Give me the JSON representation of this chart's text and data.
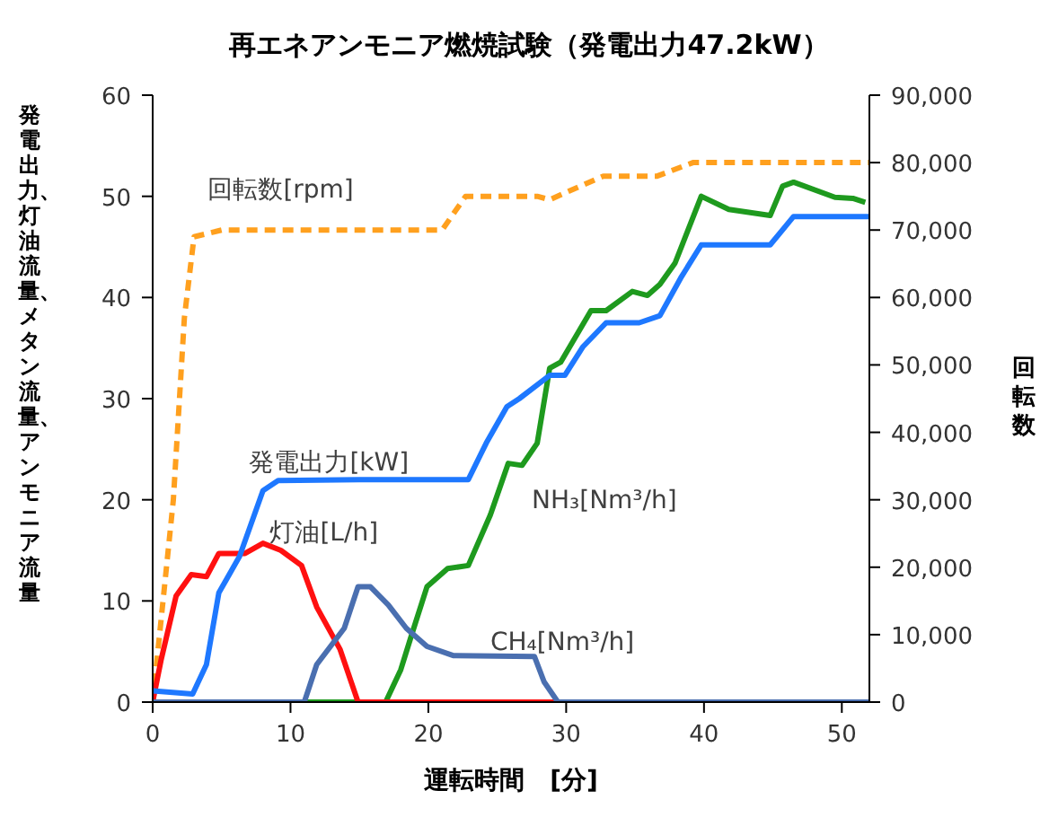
{
  "chart_data": {
    "type": "line",
    "title": "再エネアンモニア燃焼試験（発電出力47.2kW）",
    "xlabel": "運転時間　[分]",
    "ylabel": "発電出力、灯油流量、メタン流量、アンモニア流量",
    "y2label": "回転数",
    "xlim": [
      0,
      52
    ],
    "xticks": [
      0,
      10,
      20,
      30,
      40,
      50
    ],
    "ylim": [
      0,
      60
    ],
    "yticks": [
      0,
      10,
      20,
      30,
      40,
      50,
      60
    ],
    "y2lim": [
      0,
      90000
    ],
    "y2ticks": [
      {
        "value": 0,
        "label": "0"
      },
      {
        "value": 10000,
        "label": "10,000"
      },
      {
        "value": 20000,
        "label": "20,000"
      },
      {
        "value": 30000,
        "label": "30,000"
      },
      {
        "value": 40000,
        "label": "40,000"
      },
      {
        "value": 50000,
        "label": "50,000"
      },
      {
        "value": 60000,
        "label": "60,000"
      },
      {
        "value": 70000,
        "label": "70,000"
      },
      {
        "value": 80000,
        "label": "80,000"
      },
      {
        "value": 90000,
        "label": "90,000"
      }
    ],
    "grid": false,
    "legend": false,
    "marker": "none",
    "series": [
      {
        "name": "回転数[rpm]",
        "color": "#ffa01e",
        "axis": "y2",
        "line_style": "dashed",
        "x": [
          0,
          1.5,
          2.3,
          3,
          5,
          21,
          22.7,
          25.3,
          27.9,
          28.8,
          32.7,
          36.6,
          39.2,
          52
        ],
        "values": [
          0,
          30000,
          57000,
          69000,
          70000,
          70000,
          75000,
          75000,
          75000,
          74500,
          78000,
          78000,
          80000,
          80000
        ]
      },
      {
        "name": "NH₃[Nm³/h]",
        "color": "#1e9a1e",
        "line_style": "solid",
        "x": [
          0,
          16.9,
          18,
          18.8,
          19.9,
          21.4,
          22.9,
          24.5,
          25.8,
          26.8,
          27.9,
          28.8,
          29.6,
          31.8,
          32.9,
          34.8,
          35.9,
          36.8,
          37.9,
          39.8,
          41.8,
          44.8,
          45.7,
          46.5,
          49.5,
          50.8,
          51.7
        ],
        "values": [
          0,
          0,
          3.2,
          6.7,
          11.4,
          13.2,
          13.5,
          18.5,
          23.6,
          23.4,
          25.6,
          33,
          33.6,
          38.7,
          38.7,
          40.6,
          40.2,
          41.3,
          43.4,
          50,
          48.7,
          48.1,
          51,
          51.4,
          49.9,
          49.8,
          49.4
        ]
      },
      {
        "name": "灯油[L/h]",
        "color": "#ff1010",
        "line_style": "solid",
        "x": [
          0,
          0.6,
          1.7,
          2.8,
          3.9,
          4.8,
          6.7,
          8,
          9.3,
          10.8,
          11.9,
          13.6,
          14.9,
          34.4
        ],
        "values": [
          0,
          4.1,
          10.5,
          12.6,
          12.4,
          14.7,
          14.7,
          15.7,
          15,
          13.5,
          9.4,
          5.2,
          0,
          0
        ]
      },
      {
        "name": "CH₄[Nm³/h]",
        "color": "#4a6fb0",
        "line_style": "solid",
        "x": [
          0,
          11,
          11.9,
          13.9,
          14.9,
          15.8,
          17.1,
          18.4,
          19.9,
          21.8,
          27.7,
          28.4,
          29.4,
          52
        ],
        "values": [
          0,
          0,
          3.7,
          7.3,
          11.4,
          11.4,
          9.6,
          7.3,
          5.5,
          4.6,
          4.5,
          2,
          0,
          0
        ]
      },
      {
        "name": "発電出力[kW]",
        "color": "#1e78ff",
        "line_style": "solid",
        "x": [
          0,
          2.9,
          3.9,
          4.8,
          6.3,
          8,
          9.1,
          15,
          22.9,
          24.2,
          25.7,
          26.6,
          28.8,
          29.9,
          31.2,
          32.9,
          35.3,
          36.8,
          38.3,
          39.8,
          41.8,
          44.8,
          46.5,
          51.3,
          52
        ],
        "values": [
          1.1,
          0.8,
          3.7,
          10.8,
          14.4,
          20.9,
          21.9,
          22,
          22,
          25.6,
          29.2,
          30,
          32.3,
          32.3,
          35.1,
          37.5,
          37.5,
          38.2,
          41.9,
          45.2,
          45.2,
          45.2,
          48,
          48,
          48
        ]
      }
    ]
  }
}
